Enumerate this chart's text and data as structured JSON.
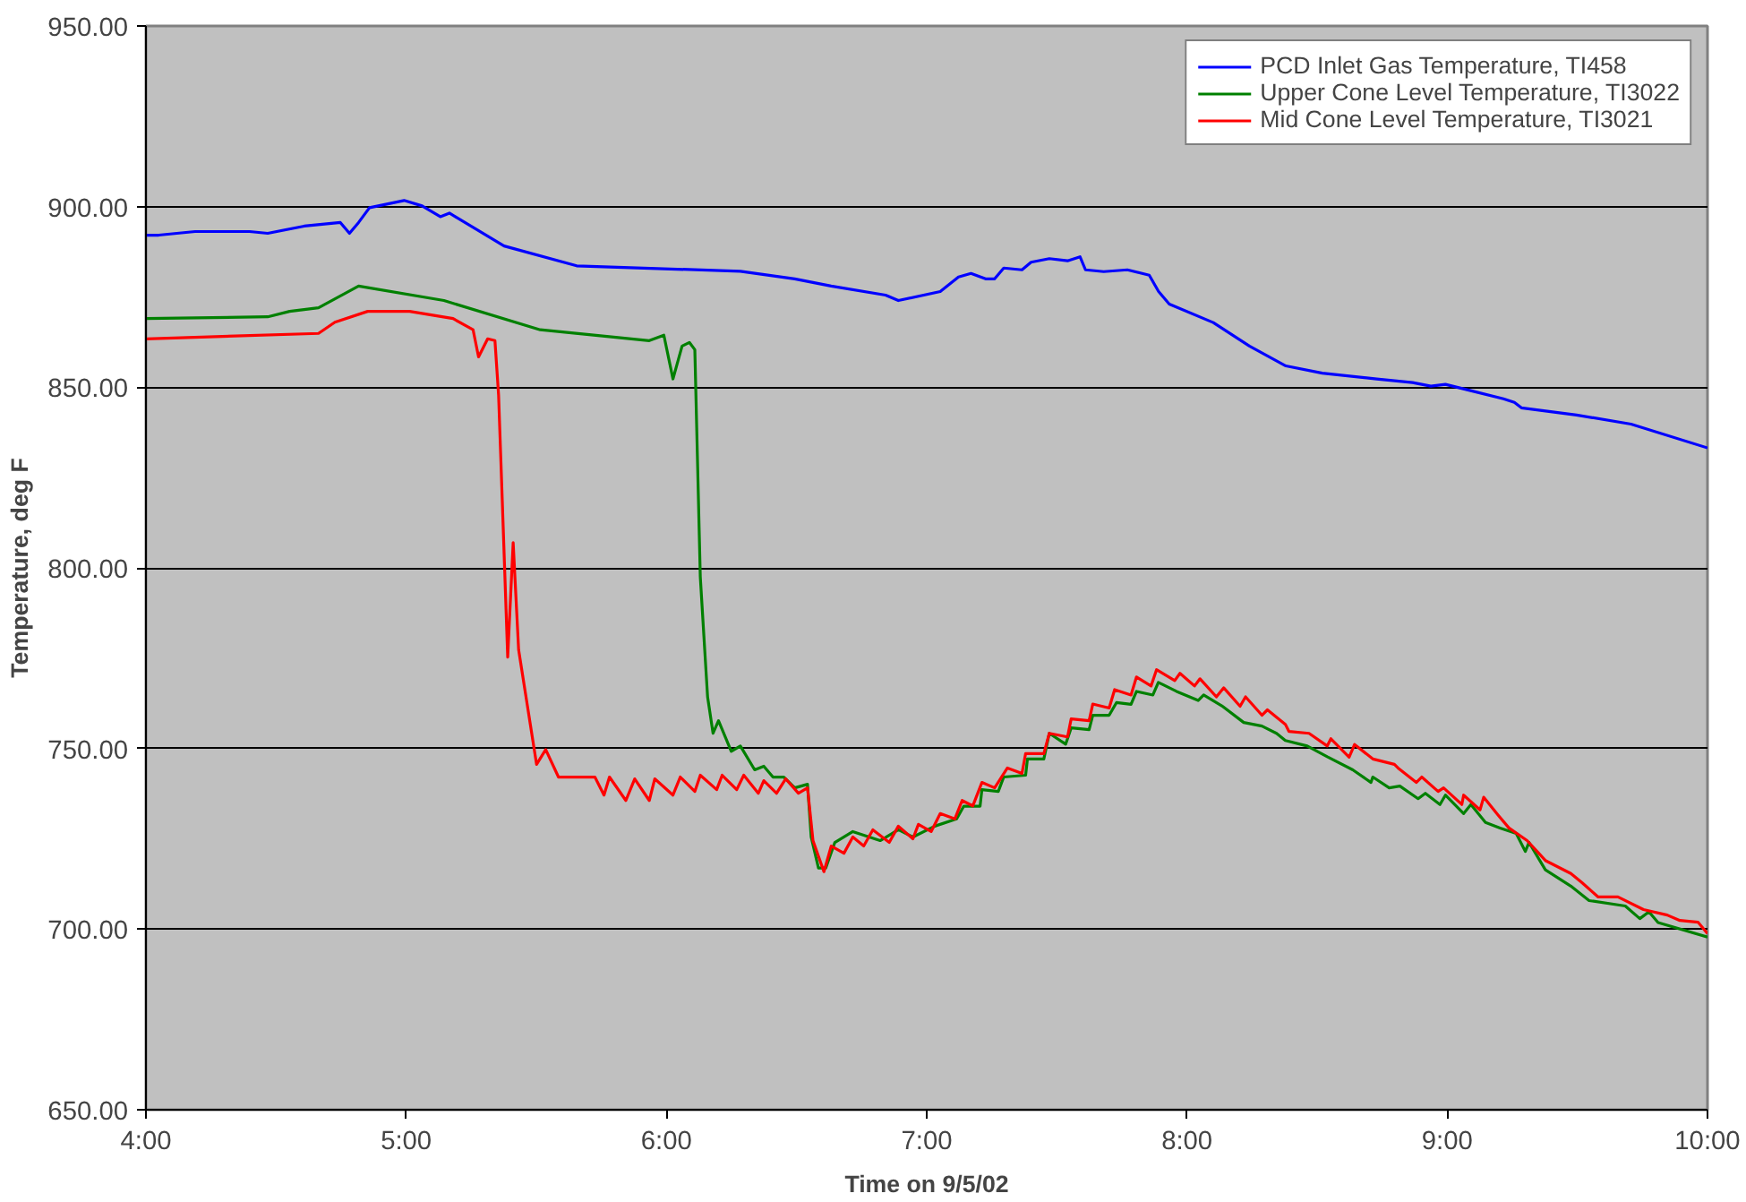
{
  "chart_data": {
    "type": "line",
    "xlabel": "Time on 9/5/02",
    "ylabel": "Temperature, deg F",
    "xlim": [
      4,
      10
    ],
    "ylim": [
      650,
      950
    ],
    "xticks": [
      {
        "value": 4,
        "label": "4:00"
      },
      {
        "value": 5,
        "label": "5:00"
      },
      {
        "value": 6,
        "label": "6:00"
      },
      {
        "value": 7,
        "label": "7:00"
      },
      {
        "value": 8,
        "label": "8:00"
      },
      {
        "value": 9,
        "label": "9:00"
      },
      {
        "value": 10,
        "label": "10:00"
      }
    ],
    "yticks": [
      {
        "value": 650,
        "label": "650.00"
      },
      {
        "value": 700,
        "label": "700.00"
      },
      {
        "value": 750,
        "label": "750.00"
      },
      {
        "value": 800,
        "label": "800.00"
      },
      {
        "value": 850,
        "label": "850.00"
      },
      {
        "value": 900,
        "label": "900.00"
      },
      {
        "value": 950,
        "label": "950.00"
      }
    ],
    "grid": "y",
    "legend": "top right",
    "marker": "none",
    "line_style": "solid",
    "series": [
      {
        "name": "PCD Inlet Gas Temperature, TI458",
        "color": "#0000ff",
        "x": [
          4.0,
          4.049,
          4.189,
          4.398,
          4.468,
          4.608,
          4.747,
          4.782,
          4.817,
          4.859,
          4.992,
          5.061,
          5.131,
          5.166,
          5.376,
          5.655,
          6.284,
          6.493,
          6.633,
          6.842,
          6.891,
          7.052,
          7.122,
          7.17,
          7.226,
          7.261,
          7.296,
          7.366,
          7.401,
          7.471,
          7.541,
          7.589,
          7.61,
          7.68,
          7.771,
          7.855,
          7.891,
          7.932,
          8.101,
          8.24,
          8.38,
          8.52,
          8.729,
          8.867,
          8.937,
          8.993,
          9.076,
          9.216,
          9.258,
          9.285,
          9.497,
          9.706,
          10.0
        ],
        "values": [
          892.1,
          892.1,
          893.1,
          893.1,
          892.6,
          894.6,
          895.6,
          892.6,
          895.6,
          899.7,
          901.7,
          900.2,
          897.2,
          898.2,
          889.1,
          883.6,
          882.1,
          880.0,
          878.0,
          875.5,
          874.0,
          876.5,
          880.5,
          881.5,
          880.0,
          880.0,
          883.0,
          882.5,
          884.6,
          885.6,
          885.0,
          886.1,
          882.5,
          882.0,
          882.5,
          881.0,
          876.5,
          873.0,
          867.9,
          861.4,
          855.9,
          853.9,
          852.3,
          851.3,
          850.3,
          850.8,
          849.3,
          846.8,
          845.8,
          844.3,
          842.3,
          839.8,
          833.2
        ]
      },
      {
        "name": "Upper Cone Level Temperature, TI3022",
        "color": "#008000",
        "x": [
          4.0,
          4.468,
          4.552,
          4.663,
          4.817,
          5.145,
          5.515,
          5.934,
          5.99,
          6.025,
          6.06,
          6.088,
          6.109,
          6.13,
          6.158,
          6.179,
          6.2,
          6.249,
          6.284,
          6.339,
          6.374,
          6.409,
          6.451,
          6.493,
          6.542,
          6.556,
          6.584,
          6.612,
          6.647,
          6.716,
          6.821,
          6.891,
          6.947,
          7.031,
          7.115,
          7.142,
          7.205,
          7.212,
          7.275,
          7.296,
          7.38,
          7.387,
          7.45,
          7.471,
          7.534,
          7.555,
          7.624,
          7.638,
          7.701,
          7.729,
          7.785,
          7.806,
          7.869,
          7.89,
          7.96,
          8.043,
          8.064,
          8.134,
          8.218,
          8.288,
          8.344,
          8.378,
          8.462,
          8.539,
          8.637,
          8.707,
          8.714,
          8.777,
          8.818,
          8.888,
          8.916,
          8.972,
          8.993,
          9.063,
          9.091,
          9.147,
          9.203,
          9.265,
          9.3,
          9.314,
          9.377,
          9.475,
          9.545,
          9.684,
          9.74,
          9.775,
          9.81,
          10.0
        ],
        "values": [
          869.0,
          869.5,
          871.0,
          872.0,
          878.0,
          874.0,
          865.9,
          862.9,
          864.4,
          852.3,
          861.4,
          862.4,
          860.4,
          797.5,
          764.3,
          754.2,
          757.7,
          749.2,
          750.7,
          744.1,
          745.1,
          742.1,
          742.1,
          739.1,
          740.1,
          725.5,
          716.9,
          716.9,
          724.0,
          727.0,
          724.5,
          727.5,
          725.5,
          728.5,
          730.5,
          734.0,
          734.0,
          738.6,
          738.1,
          742.1,
          742.6,
          747.1,
          747.1,
          754.2,
          751.2,
          755.7,
          755.2,
          759.2,
          759.2,
          762.7,
          762.2,
          765.8,
          764.8,
          768.3,
          765.8,
          763.3,
          764.8,
          761.8,
          757.2,
          756.2,
          754.2,
          752.2,
          750.7,
          747.7,
          744.1,
          740.6,
          742.1,
          739.1,
          739.6,
          736.1,
          737.6,
          734.5,
          737.1,
          732.0,
          734.5,
          729.5,
          728.0,
          726.5,
          721.5,
          724.0,
          716.4,
          711.9,
          707.9,
          706.4,
          702.9,
          704.8,
          701.8,
          697.8
        ]
      },
      {
        "name": "Mid Cone Level Temperature, TI3021",
        "color": "#ff0000",
        "x": [
          4.0,
          4.663,
          4.726,
          4.852,
          5.013,
          5.18,
          5.257,
          5.278,
          5.313,
          5.341,
          5.355,
          5.39,
          5.411,
          5.432,
          5.501,
          5.536,
          5.585,
          5.725,
          5.76,
          5.781,
          5.844,
          5.878,
          5.934,
          5.955,
          6.025,
          6.053,
          6.109,
          6.13,
          6.193,
          6.214,
          6.27,
          6.297,
          6.353,
          6.374,
          6.423,
          6.458,
          6.507,
          6.542,
          6.563,
          6.605,
          6.633,
          6.682,
          6.716,
          6.758,
          6.793,
          6.856,
          6.891,
          6.947,
          6.968,
          7.017,
          7.052,
          7.108,
          7.136,
          7.177,
          7.212,
          7.261,
          7.31,
          7.366,
          7.38,
          7.45,
          7.471,
          7.541,
          7.555,
          7.624,
          7.638,
          7.701,
          7.722,
          7.785,
          7.806,
          7.862,
          7.883,
          7.953,
          7.973,
          8.029,
          8.05,
          8.113,
          8.141,
          8.204,
          8.225,
          8.288,
          8.309,
          8.378,
          8.392,
          8.469,
          8.539,
          8.553,
          8.623,
          8.644,
          8.714,
          8.797,
          8.811,
          8.881,
          8.902,
          8.965,
          8.986,
          9.056,
          9.063,
          9.126,
          9.14,
          9.196,
          9.237,
          9.307,
          9.377,
          9.475,
          9.517,
          9.58,
          9.656,
          9.754,
          9.845,
          9.894,
          9.964,
          10.0
        ],
        "values": [
          863.4,
          864.9,
          868.0,
          871.0,
          871.0,
          869.0,
          865.9,
          858.4,
          863.4,
          862.9,
          847.8,
          775.3,
          807.0,
          777.3,
          745.6,
          749.7,
          742.1,
          742.1,
          737.1,
          742.1,
          735.6,
          741.6,
          735.6,
          741.6,
          737.1,
          742.1,
          738.1,
          742.6,
          738.6,
          742.6,
          738.6,
          742.6,
          737.6,
          741.1,
          737.6,
          741.6,
          737.6,
          739.1,
          724.5,
          715.9,
          723.0,
          721.0,
          725.5,
          723.0,
          727.5,
          724.0,
          728.5,
          725.0,
          729.0,
          727.0,
          732.0,
          730.5,
          735.6,
          734.1,
          740.6,
          739.1,
          744.6,
          743.1,
          748.6,
          748.6,
          754.2,
          753.2,
          758.2,
          757.7,
          762.3,
          761.2,
          766.3,
          764.8,
          769.8,
          767.3,
          771.8,
          768.8,
          770.8,
          767.3,
          769.3,
          764.3,
          766.8,
          761.7,
          764.3,
          759.2,
          760.7,
          756.7,
          754.7,
          754.2,
          750.7,
          752.7,
          747.6,
          751.1,
          747.1,
          745.6,
          744.6,
          740.6,
          742.1,
          738.1,
          739.1,
          734.5,
          737.1,
          733.0,
          736.5,
          731.5,
          728.0,
          724.5,
          719.0,
          715.4,
          712.9,
          708.9,
          708.9,
          705.4,
          703.9,
          702.4,
          701.9,
          698.8
        ]
      }
    ]
  }
}
